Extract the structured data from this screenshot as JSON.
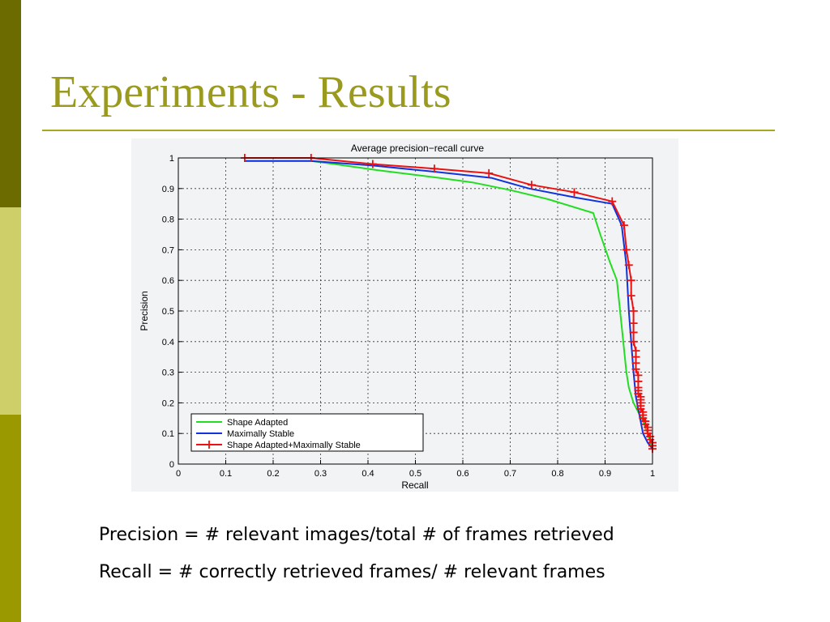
{
  "slide": {
    "title": "Experiments - Results",
    "precision_definition": "Precision = # relevant images/total # of frames retrieved",
    "recall_definition": "Recall = # correctly retrieved frames/ # relevant frames"
  },
  "chart_data": {
    "type": "line",
    "title": "Average precision−recall curve",
    "xlabel": "Recall",
    "ylabel": "Precision",
    "xlim": [
      0,
      1
    ],
    "ylim": [
      0,
      1
    ],
    "xticks": [
      "0",
      "0.1",
      "0.2",
      "0.3",
      "0.4",
      "0.5",
      "0.6",
      "0.7",
      "0.8",
      "0.9",
      "1"
    ],
    "yticks": [
      "0",
      "0.1",
      "0.2",
      "0.3",
      "0.4",
      "0.5",
      "0.6",
      "0.7",
      "0.8",
      "0.9",
      "1"
    ],
    "grid": true,
    "legend_position": "bottom-left",
    "series": [
      {
        "name": "Shape Adapted",
        "color": "#22dd22",
        "marker": "none",
        "x": [
          0.14,
          0.28,
          0.33,
          0.42,
          0.55,
          0.62,
          0.7,
          0.78,
          0.875,
          0.89,
          0.91,
          0.925,
          0.935,
          0.945,
          0.95,
          0.96,
          0.97,
          0.98,
          0.99,
          1.0
        ],
        "y": [
          0.99,
          0.99,
          0.98,
          0.96,
          0.935,
          0.92,
          0.895,
          0.865,
          0.82,
          0.75,
          0.66,
          0.6,
          0.45,
          0.3,
          0.25,
          0.2,
          0.17,
          0.14,
          0.1,
          0.05
        ]
      },
      {
        "name": "Maximally Stable",
        "color": "#1133dd",
        "marker": "none",
        "x": [
          0.14,
          0.28,
          0.41,
          0.54,
          0.66,
          0.74,
          0.84,
          0.915,
          0.935,
          0.945,
          0.95,
          0.955,
          0.96,
          0.965,
          0.97,
          0.975,
          0.98,
          0.99,
          1.0
        ],
        "y": [
          0.99,
          0.99,
          0.975,
          0.955,
          0.935,
          0.9,
          0.87,
          0.85,
          0.78,
          0.65,
          0.5,
          0.4,
          0.3,
          0.22,
          0.18,
          0.14,
          0.1,
          0.07,
          0.05
        ]
      },
      {
        "name": "Shape Adapted+Maximally Stable",
        "color": "#ee1111",
        "marker": "plus",
        "x": [
          0.14,
          0.28,
          0.41,
          0.54,
          0.655,
          0.745,
          0.835,
          0.915,
          0.94,
          0.945,
          0.95,
          0.955,
          0.955,
          0.96,
          0.96,
          0.96,
          0.96,
          0.965,
          0.965,
          0.965,
          0.965,
          0.97,
          0.97,
          0.97,
          0.97,
          0.97,
          0.975,
          0.975,
          0.975,
          0.975,
          0.975,
          0.98,
          0.98,
          0.98,
          0.985,
          0.985,
          0.99,
          0.99,
          0.99,
          0.995,
          0.995,
          1.0,
          1.0,
          1.0
        ],
        "y": [
          1.0,
          1.0,
          0.98,
          0.965,
          0.95,
          0.912,
          0.888,
          0.858,
          0.78,
          0.7,
          0.65,
          0.6,
          0.55,
          0.5,
          0.46,
          0.43,
          0.4,
          0.37,
          0.35,
          0.33,
          0.31,
          0.29,
          0.27,
          0.25,
          0.24,
          0.23,
          0.22,
          0.21,
          0.2,
          0.19,
          0.18,
          0.17,
          0.16,
          0.15,
          0.14,
          0.13,
          0.12,
          0.11,
          0.1,
          0.09,
          0.08,
          0.07,
          0.06,
          0.05
        ]
      }
    ]
  }
}
